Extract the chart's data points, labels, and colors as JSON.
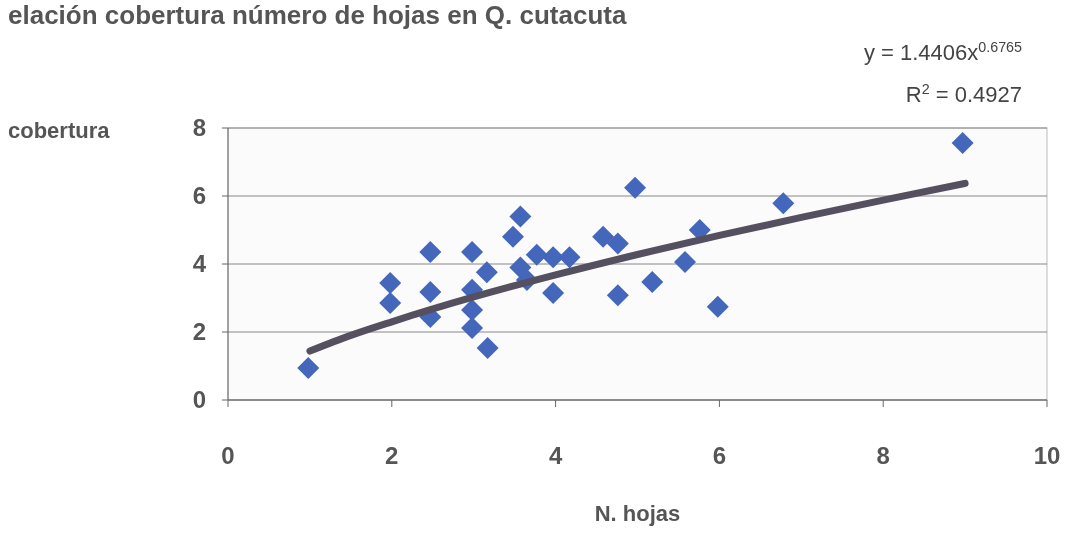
{
  "chart_data": {
    "type": "scatter",
    "title": "elación cobertura número de hojas en Q. cutacuta",
    "xlabel": "N. hojas",
    "ylabel": "cobertura",
    "annotations": [
      "y = 1.4406x$^{0.6765}$",
      "R$^{2}$ = 0.4927"
    ],
    "xlim": [
      0,
      10
    ],
    "xticks": [
      0,
      2,
      4,
      6,
      8,
      10
    ],
    "ylim": [
      0,
      8
    ],
    "yticks": [
      0,
      2,
      4,
      6,
      8
    ],
    "grid": "y",
    "series": [
      {
        "marker": "diamond",
        "color": "#4466bb",
        "x": [
          0.98,
          1.98,
          1.98,
          2.47,
          2.47,
          2.47,
          2.98,
          2.98,
          2.98,
          2.98,
          3.16,
          3.17,
          3.48,
          3.57,
          3.57,
          3.65,
          3.77,
          3.97,
          3.97,
          4.17,
          4.58,
          4.76,
          4.76,
          4.97,
          5.18,
          5.58,
          5.76,
          5.98,
          6.78,
          8.97
        ],
        "values": [
          0.94,
          3.44,
          2.85,
          4.35,
          3.18,
          2.44,
          4.35,
          3.24,
          2.65,
          2.12,
          3.76,
          1.53,
          4.8,
          5.4,
          3.9,
          3.53,
          4.27,
          4.2,
          3.15,
          4.2,
          4.8,
          4.6,
          3.08,
          6.24,
          3.47,
          4.06,
          5.0,
          2.74,
          5.79,
          7.56
        ]
      },
      {
        "type": "line",
        "color": "#555060",
        "line_style": "solid",
        "x": [
          1,
          1.5,
          2,
          3,
          4,
          5,
          6,
          7,
          8,
          9
        ],
        "values": [
          1.44,
          1.9,
          2.3,
          3.03,
          3.68,
          4.28,
          4.84,
          5.37,
          5.88,
          6.37
        ]
      }
    ]
  }
}
